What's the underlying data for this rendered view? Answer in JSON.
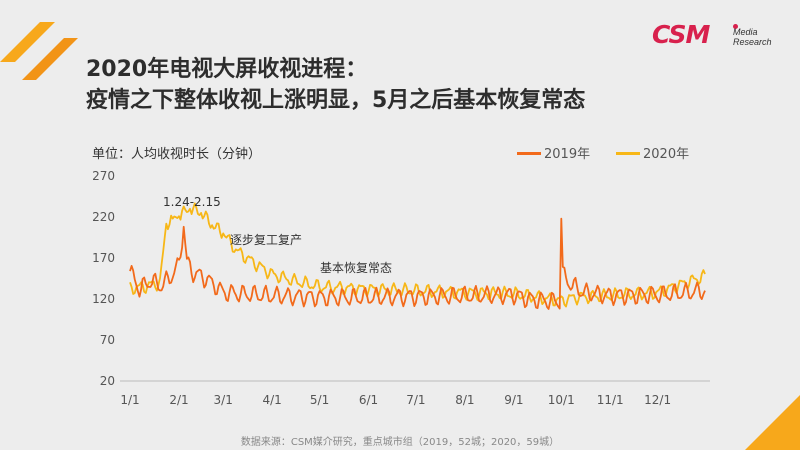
{
  "title_line1": "2020年电视大屏收视进程：",
  "title_line2": "疫情之下整体收视上涨明显，5月之后基本恢复常态",
  "logo": {
    "main": "CSM",
    "sub_line1": "Media",
    "sub_line2": "Research"
  },
  "source": "数据来源：CSM媒介研究，重点城市组（2019，52城；2020，59城）",
  "colors": {
    "s2019": "#f26a1b",
    "s2020": "#f7b717",
    "accent": "#f7a81b",
    "brand": "#d8214d"
  },
  "chart_data": {
    "type": "line",
    "ylabel": "单位：人均收视时长（分钟）",
    "ylim": [
      20,
      270
    ],
    "yticks": [
      20,
      70,
      120,
      170,
      220,
      270
    ],
    "xticks": [
      "1/1",
      "2/1",
      "3/1",
      "4/1",
      "5/1",
      "6/1",
      "7/1",
      "8/1",
      "9/1",
      "10/1",
      "11/1",
      "12/1"
    ],
    "xlim": [
      "1/1",
      "12/31"
    ],
    "grid": false,
    "legend_position": "top-right",
    "series": [
      {
        "name": "2019年",
        "color": "#f26a1b",
        "points": [
          [
            "1/1",
            154
          ],
          [
            "1/7",
            132
          ],
          [
            "1/14",
            142
          ],
          [
            "1/21",
            136
          ],
          [
            "1/28",
            150
          ],
          [
            "2/1",
            162
          ],
          [
            "2/4",
            208
          ],
          [
            "2/6",
            165
          ],
          [
            "2/10",
            152
          ],
          [
            "2/15",
            148
          ],
          [
            "2/20",
            142
          ],
          [
            "2/25",
            135
          ],
          [
            "3/1",
            128
          ],
          [
            "3/15",
            126
          ],
          [
            "4/1",
            124
          ],
          [
            "5/1",
            122
          ],
          [
            "6/1",
            122
          ],
          [
            "7/1",
            123
          ],
          [
            "8/1",
            124
          ],
          [
            "9/1",
            125
          ],
          [
            "9/10",
            120
          ],
          [
            "9/20",
            118
          ],
          [
            "9/30",
            117
          ],
          [
            "10/1",
            218
          ],
          [
            "10/2",
            150
          ],
          [
            "10/7",
            138
          ],
          [
            "10/15",
            128
          ],
          [
            "11/1",
            124
          ],
          [
            "12/1",
            125
          ],
          [
            "12/31",
            130
          ]
        ]
      },
      {
        "name": "2020年",
        "color": "#f7b717",
        "points": [
          [
            "1/1",
            133
          ],
          [
            "1/10",
            135
          ],
          [
            "1/20",
            140
          ],
          [
            "1/24",
            212
          ],
          [
            "1/28",
            218
          ],
          [
            "2/1",
            221
          ],
          [
            "2/8",
            230
          ],
          [
            "2/15",
            225
          ],
          [
            "2/22",
            210
          ],
          [
            "3/1",
            200
          ],
          [
            "3/10",
            178
          ],
          [
            "3/20",
            165
          ],
          [
            "4/1",
            150
          ],
          [
            "4/15",
            142
          ],
          [
            "5/1",
            135
          ],
          [
            "6/1",
            132
          ],
          [
            "7/1",
            130
          ],
          [
            "8/1",
            128
          ],
          [
            "9/1",
            126
          ],
          [
            "9/20",
            121
          ],
          [
            "10/1",
            118
          ],
          [
            "10/10",
            122
          ],
          [
            "11/1",
            124
          ],
          [
            "12/1",
            128
          ],
          [
            "12/31",
            148
          ]
        ]
      }
    ],
    "annotations": [
      "1.24-2.15",
      "逐步复工复产",
      "基本恢复常态"
    ]
  }
}
